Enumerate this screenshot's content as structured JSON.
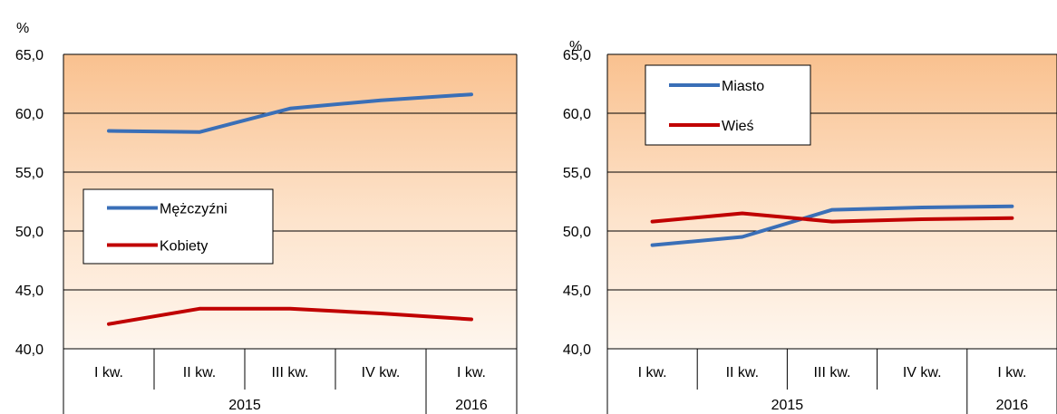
{
  "chart_data": [
    {
      "type": "line",
      "title": "",
      "unit_label": "%",
      "ylim": [
        40,
        65
      ],
      "yticks": [
        "40,0",
        "45,0",
        "50,0",
        "55,0",
        "60,0",
        "65,0"
      ],
      "categories": [
        "I kw.",
        "II kw.",
        "III kw.",
        "IV kw.",
        "I kw."
      ],
      "year_groups": [
        {
          "label": "2015",
          "span": 4
        },
        {
          "label": "2016",
          "span": 1
        }
      ],
      "grid": true,
      "legend_position": "middle-left",
      "series": [
        {
          "name": "Mężczyźni",
          "color": "#3a6fb7",
          "values": [
            58.5,
            58.4,
            60.4,
            61.1,
            61.6
          ]
        },
        {
          "name": "Kobiety",
          "color": "#c00000",
          "values": [
            42.1,
            43.4,
            43.4,
            43.0,
            42.5
          ]
        }
      ]
    },
    {
      "type": "line",
      "title": "",
      "unit_label": "%",
      "ylim": [
        40,
        65
      ],
      "yticks": [
        "40,0",
        "45,0",
        "50,0",
        "55,0",
        "60,0",
        "65,0"
      ],
      "categories": [
        "I kw.",
        "II kw.",
        "III kw.",
        "IV kw.",
        "I kw."
      ],
      "year_groups": [
        {
          "label": "2015",
          "span": 4
        },
        {
          "label": "2016",
          "span": 1
        }
      ],
      "grid": true,
      "legend_position": "top-left",
      "series": [
        {
          "name": "Miasto",
          "color": "#3a6fb7",
          "values": [
            48.8,
            49.5,
            51.8,
            52.0,
            52.1
          ]
        },
        {
          "name": "Wieś",
          "color": "#c00000",
          "values": [
            50.8,
            51.5,
            50.8,
            51.0,
            51.1
          ]
        }
      ]
    }
  ]
}
